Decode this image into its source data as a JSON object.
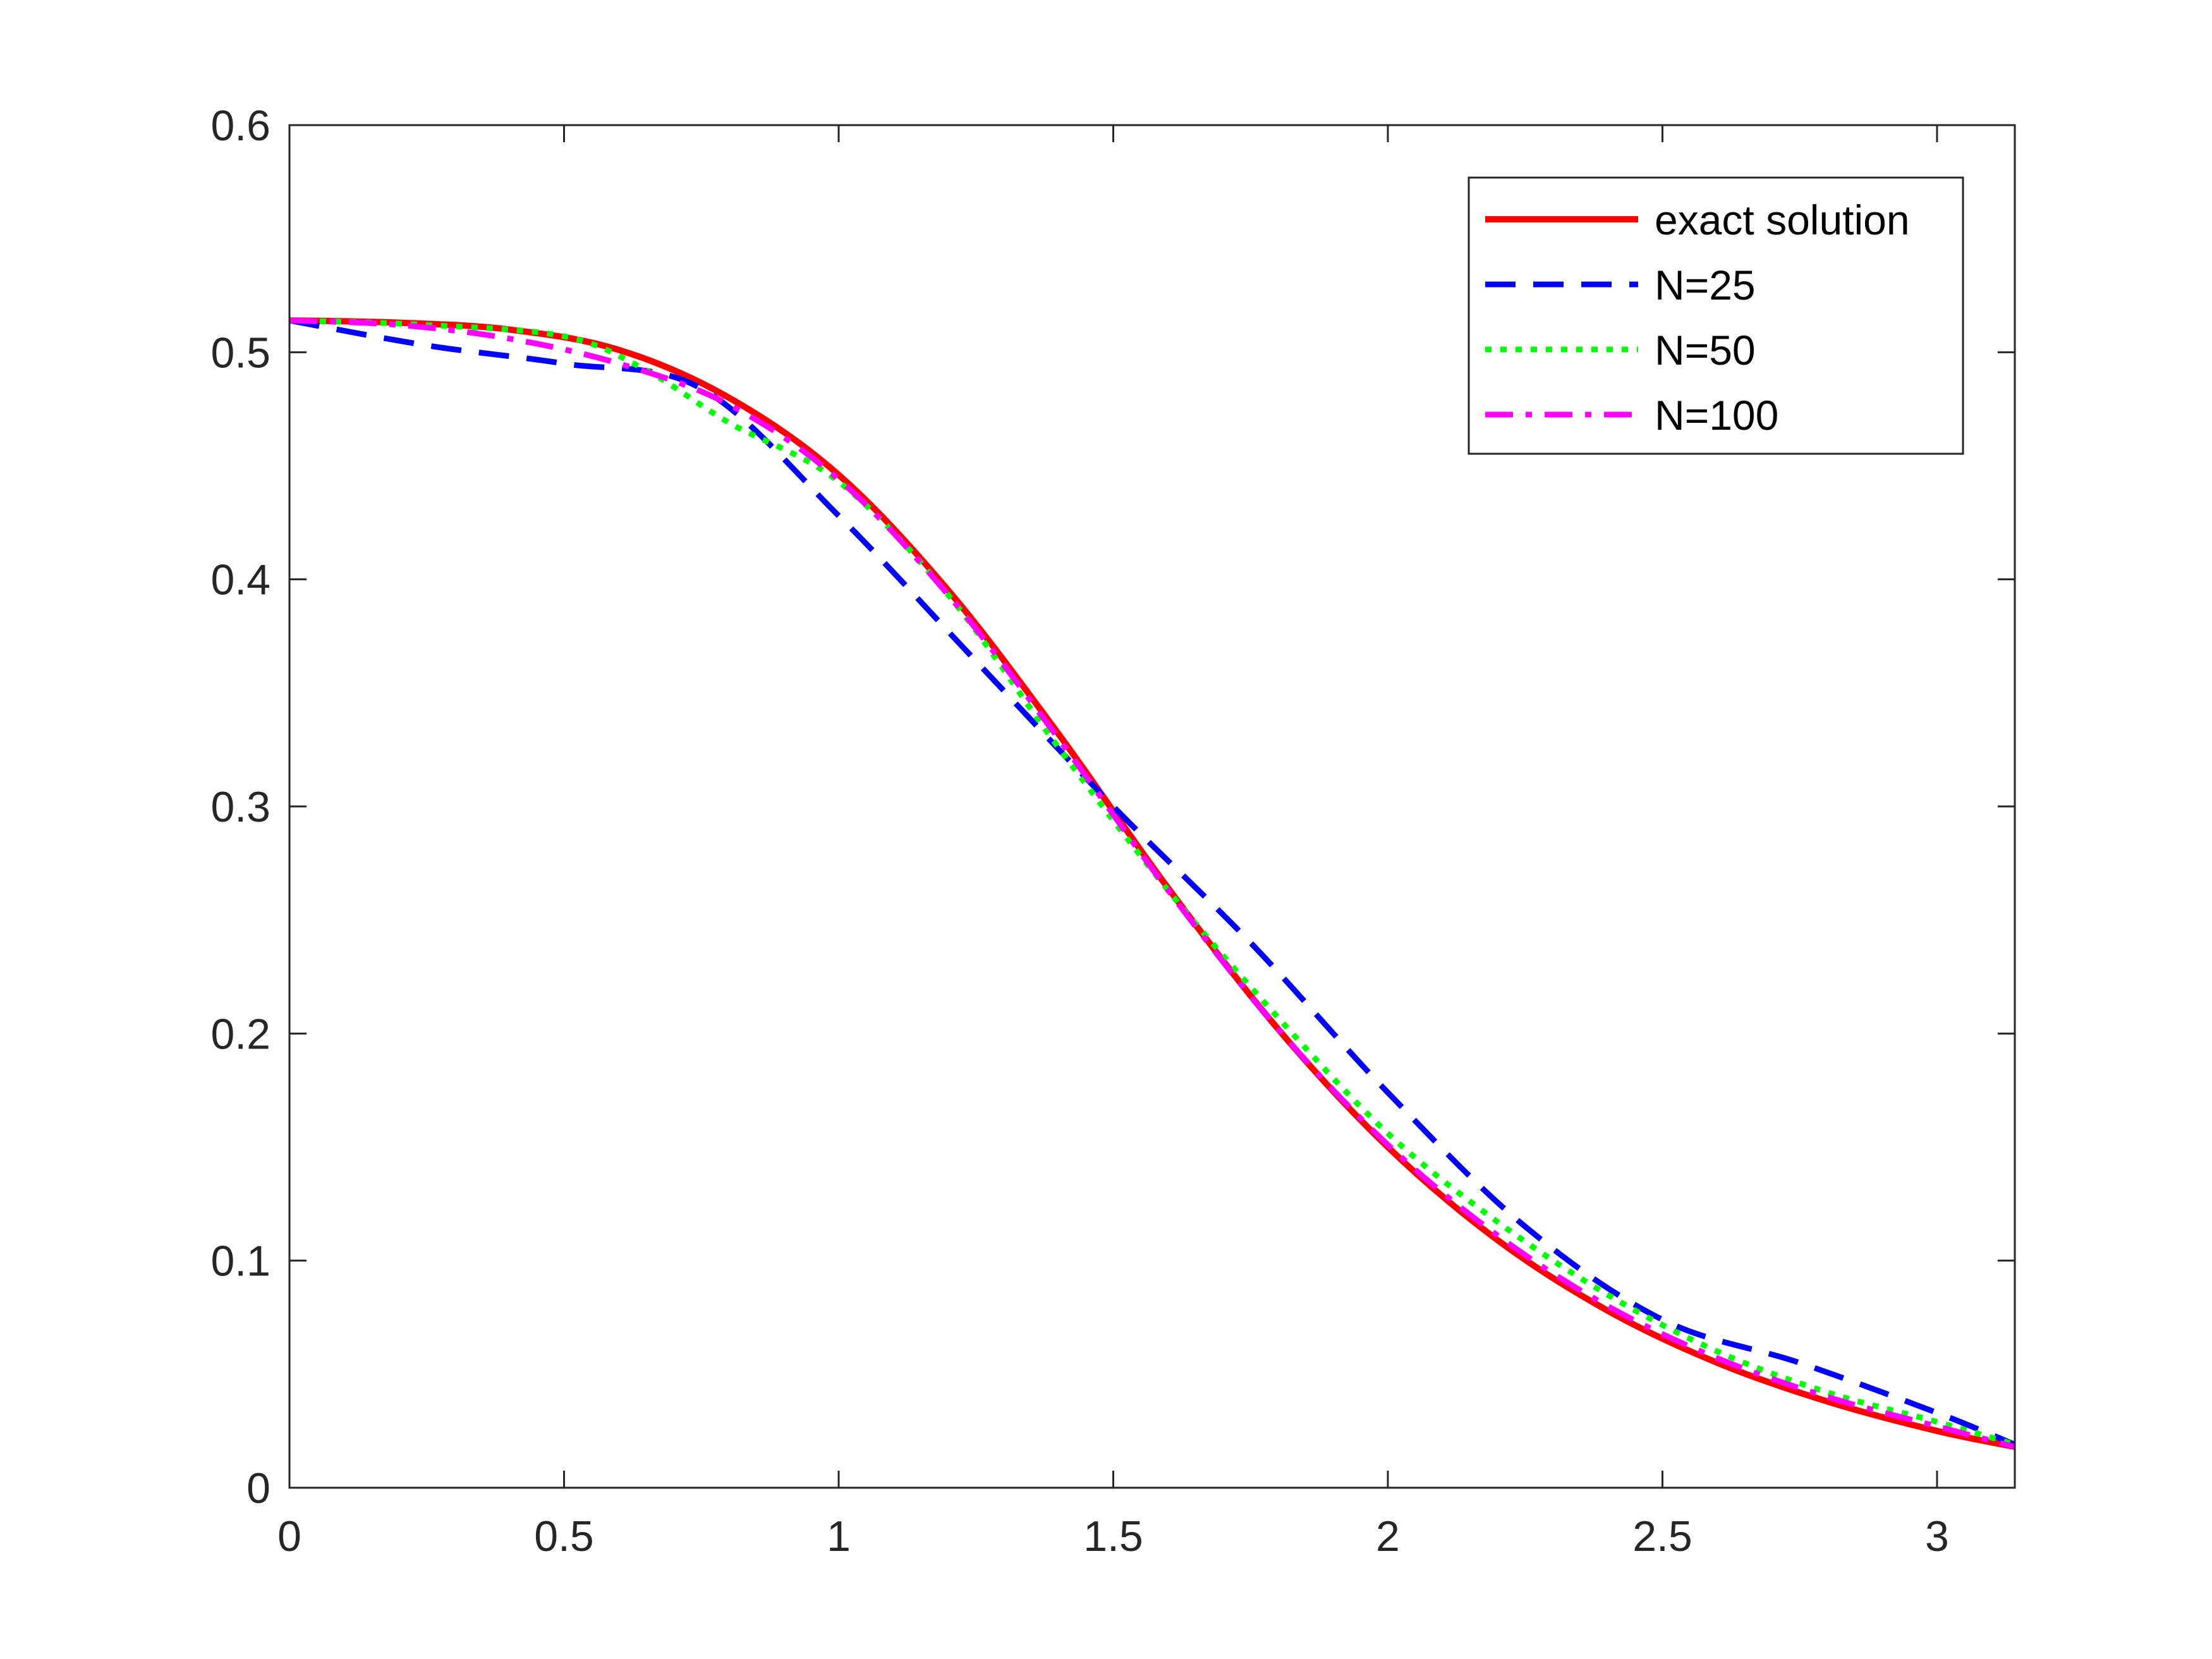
{
  "chart_data": {
    "type": "line",
    "title": "",
    "xlabel": "",
    "ylabel": "",
    "xlim": [
      0,
      3.14159
    ],
    "ylim": [
      0,
      0.6
    ],
    "xticks": [
      0,
      0.5,
      1,
      1.5,
      2,
      2.5,
      3
    ],
    "xtick_labels": [
      "0",
      "0.5",
      "1",
      "1.5",
      "2",
      "2.5",
      "3"
    ],
    "yticks": [
      0,
      0.1,
      0.2,
      0.3,
      0.4,
      0.5,
      0.6
    ],
    "ytick_labels": [
      "0",
      "0.1",
      "0.2",
      "0.3",
      "0.4",
      "0.5",
      "0.6"
    ],
    "grid": false,
    "legend_position": "top-right",
    "series": [
      {
        "name": "exact solution",
        "color": "#ff0000",
        "style": "solid",
        "x": [
          0,
          0.2,
          0.4,
          0.6,
          0.8,
          1.0,
          1.2,
          1.4,
          1.6,
          1.8,
          2.0,
          2.2,
          2.4,
          2.6,
          2.8,
          3.0,
          3.14159
        ],
        "y": [
          0.514,
          0.513,
          0.51,
          0.501,
          0.48,
          0.446,
          0.395,
          0.332,
          0.264,
          0.202,
          0.15,
          0.109,
          0.078,
          0.055,
          0.038,
          0.025,
          0.018
        ]
      },
      {
        "name": "N=25",
        "color": "#0000ff",
        "style": "dashed",
        "x": [
          0,
          0.25,
          0.5,
          0.75,
          1.0,
          1.25,
          1.5,
          1.75,
          2.0,
          2.25,
          2.5,
          2.75,
          3.0,
          3.14159
        ],
        "y": [
          0.514,
          0.503,
          0.495,
          0.484,
          0.428,
          0.364,
          0.3,
          0.24,
          0.174,
          0.115,
          0.074,
          0.055,
          0.033,
          0.019
        ]
      },
      {
        "name": "N=50",
        "color": "#00ff00",
        "style": "dotted",
        "x": [
          0,
          0.25,
          0.5,
          0.65,
          0.8,
          1.0,
          1.2,
          1.4,
          1.6,
          1.8,
          2.0,
          2.2,
          2.4,
          2.6,
          2.8,
          3.0,
          3.14159
        ],
        "y": [
          0.514,
          0.512,
          0.507,
          0.492,
          0.469,
          0.443,
          0.393,
          0.326,
          0.263,
          0.207,
          0.156,
          0.117,
          0.085,
          0.06,
          0.042,
          0.029,
          0.019
        ]
      },
      {
        "name": "N=100",
        "color": "#ff00ff",
        "style": "dashdot",
        "x": [
          0,
          0.2,
          0.4,
          0.6,
          0.8,
          1.0,
          1.2,
          1.4,
          1.6,
          1.8,
          2.0,
          2.2,
          2.4,
          2.6,
          2.8,
          3.0,
          3.14159
        ],
        "y": [
          0.514,
          0.512,
          0.506,
          0.495,
          0.477,
          0.444,
          0.393,
          0.33,
          0.263,
          0.202,
          0.151,
          0.111,
          0.08,
          0.057,
          0.04,
          0.027,
          0.018
        ]
      }
    ]
  }
}
